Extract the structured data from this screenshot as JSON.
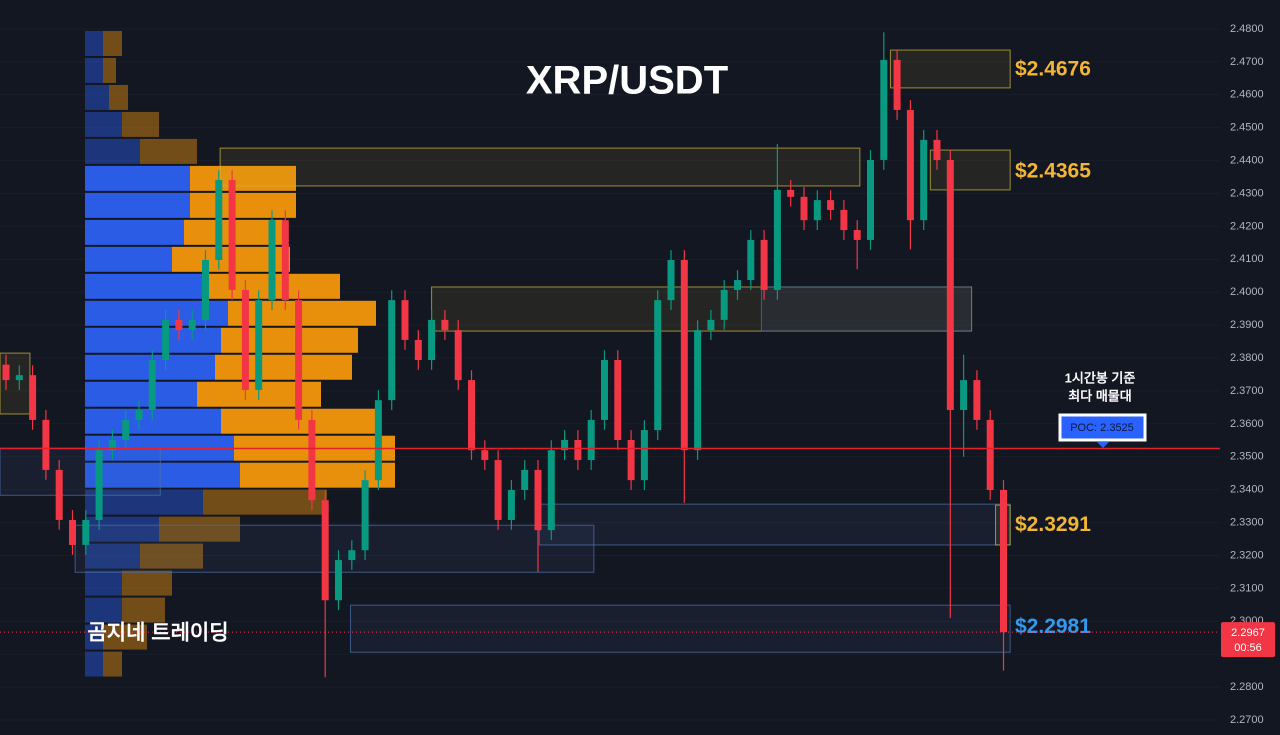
{
  "chart_data": {
    "type": "candlestick",
    "title": "XRP/USDT",
    "watermark": "곰지네 트레이딩",
    "annotation": [
      "1시간봉 기준",
      "최다 매물대"
    ],
    "poc": {
      "value": 2.3525,
      "label": "POC: 2.3525"
    },
    "current_price": 2.2967,
    "countdown": "00:56",
    "ylim": [
      2.27,
      2.48
    ],
    "yticks": [
      {
        "value": 2.48,
        "label": "2.4800"
      },
      {
        "value": 2.47,
        "label": "2.4700"
      },
      {
        "value": 2.46,
        "label": "2.4600"
      },
      {
        "value": 2.45,
        "label": "2.4500"
      },
      {
        "value": 2.44,
        "label": "2.4400"
      },
      {
        "value": 2.43,
        "label": "2.4300"
      },
      {
        "value": 2.42,
        "label": "2.4200"
      },
      {
        "value": 2.41,
        "label": "2.4100"
      },
      {
        "value": 2.4,
        "label": "2.4000"
      },
      {
        "value": 2.39,
        "label": "2.3900"
      },
      {
        "value": 2.38,
        "label": "2.3800"
      },
      {
        "value": 2.37,
        "label": "2.3700"
      },
      {
        "value": 2.36,
        "label": "2.3600"
      },
      {
        "value": 2.35,
        "label": "2.3500"
      },
      {
        "value": 2.34,
        "label": "2.3400"
      },
      {
        "value": 2.33,
        "label": "2.3300"
      },
      {
        "value": 2.32,
        "label": "2.3200"
      },
      {
        "value": 2.31,
        "label": "2.3100"
      },
      {
        "value": 2.3,
        "label": "2.3000"
      },
      {
        "value": 2.29,
        "label": "2.2900"
      },
      {
        "value": 2.28,
        "label": "2.2800"
      },
      {
        "value": 2.27,
        "label": "2.2700"
      }
    ],
    "up_color": "#089981",
    "down_color": "#f23645",
    "open": [
      2.378,
      2.3733,
      2.3748,
      2.3612,
      2.346,
      2.3308,
      2.3232,
      2.3308,
      2.352,
      2.3551,
      2.3612,
      2.3642,
      2.3794,
      2.3916,
      2.3885,
      2.3916,
      2.4098,
      2.4341,
      2.4007,
      2.3703,
      2.3976,
      2.4219,
      2.3976,
      2.3612,
      2.3368,
      2.3064,
      2.3186,
      2.3216,
      2.3429,
      2.3672,
      2.3976,
      2.3855,
      2.3794,
      2.3916,
      2.3885,
      2.3733,
      2.352,
      2.349,
      2.3308,
      2.3399,
      2.346,
      2.3277,
      2.352,
      2.3551,
      2.349,
      2.3612,
      2.3794,
      2.3551,
      2.3429,
      2.3581,
      2.3976,
      2.4098,
      2.352,
      2.3885,
      2.3916,
      2.4007,
      2.4037,
      2.4159,
      2.4007,
      2.4311,
      2.429,
      2.4219,
      2.428,
      2.425,
      2.4189,
      2.4159,
      2.4402,
      2.4706,
      2.4554,
      2.4219,
      2.4463,
      2.4402,
      2.3642,
      2.3733,
      2.3612,
      2.3399
    ],
    "high": [
      2.381,
      2.3778,
      2.3778,
      2.3642,
      2.349,
      2.3338,
      2.3338,
      2.355,
      2.3581,
      2.3642,
      2.3672,
      2.3824,
      2.3946,
      2.3946,
      2.3946,
      2.4128,
      2.4371,
      2.4371,
      2.4037,
      2.4006,
      2.4249,
      2.4249,
      2.4006,
      2.3642,
      2.3398,
      2.3216,
      2.3246,
      2.3459,
      2.3702,
      2.4006,
      2.4006,
      2.3885,
      2.3946,
      2.3946,
      2.3915,
      2.3763,
      2.355,
      2.352,
      2.3429,
      2.349,
      2.349,
      2.355,
      2.3581,
      2.3581,
      2.3642,
      2.3824,
      2.3824,
      2.3581,
      2.3611,
      2.4006,
      2.4128,
      2.4128,
      2.3915,
      2.3946,
      2.4037,
      2.4067,
      2.4189,
      2.4189,
      2.445,
      2.4341,
      2.432,
      2.431,
      2.431,
      2.428,
      2.4219,
      2.4432,
      2.479,
      2.4736,
      2.4584,
      2.4493,
      2.4493,
      2.4432,
      2.381,
      2.3763,
      2.3642,
      2.3429
    ],
    "low": [
      2.3703,
      2.3703,
      2.3582,
      2.343,
      2.3278,
      2.3202,
      2.3202,
      2.3278,
      2.349,
      2.3521,
      2.3582,
      2.3612,
      2.3764,
      2.3855,
      2.3855,
      2.3886,
      2.4068,
      2.3977,
      2.3673,
      2.3673,
      2.3946,
      2.3946,
      2.3582,
      2.3338,
      2.283,
      2.3034,
      2.3156,
      2.3186,
      2.3399,
      2.3642,
      2.3825,
      2.3764,
      2.3764,
      2.3855,
      2.3703,
      2.349,
      2.346,
      2.3278,
      2.3278,
      2.3369,
      2.315,
      2.3247,
      2.349,
      2.346,
      2.346,
      2.3582,
      2.3521,
      2.3399,
      2.3399,
      2.3551,
      2.3946,
      2.336,
      2.349,
      2.3855,
      2.3886,
      2.3977,
      2.4007,
      2.3977,
      2.3977,
      2.426,
      2.4189,
      2.4189,
      2.422,
      2.4159,
      2.407,
      2.4129,
      2.4372,
      2.4524,
      2.413,
      2.4189,
      2.4372,
      2.301,
      2.35,
      2.3582,
      2.3369,
      2.285
    ],
    "close": [
      2.3733,
      2.3748,
      2.3612,
      2.346,
      2.3308,
      2.3232,
      2.3308,
      2.352,
      2.3551,
      2.3612,
      2.3642,
      2.3794,
      2.3916,
      2.3885,
      2.3916,
      2.4098,
      2.4341,
      2.4007,
      2.3703,
      2.3976,
      2.4219,
      2.3976,
      2.3612,
      2.3368,
      2.3064,
      2.3186,
      2.3216,
      2.3429,
      2.3672,
      2.3976,
      2.3855,
      2.3794,
      2.3916,
      2.3885,
      2.3733,
      2.352,
      2.349,
      2.3308,
      2.3399,
      2.346,
      2.3277,
      2.352,
      2.3551,
      2.349,
      2.3612,
      2.3794,
      2.3551,
      2.3429,
      2.3581,
      2.3976,
      2.4098,
      2.352,
      2.3885,
      2.3916,
      2.4007,
      2.4037,
      2.4159,
      2.4007,
      2.4311,
      2.429,
      2.4219,
      2.428,
      2.425,
      2.4189,
      2.4159,
      2.4402,
      2.4706,
      2.4554,
      2.4219,
      2.4463,
      2.4402,
      2.3642,
      2.3733,
      2.3612,
      2.3399,
      2.2967
    ],
    "profile": {
      "bins": [
        2.4797,
        2.4715,
        2.4633,
        2.4551,
        2.4469,
        2.4387,
        2.4305,
        2.4223,
        2.4141,
        2.4059,
        2.3977,
        2.3895,
        2.3813,
        2.3731,
        2.3649,
        2.3567,
        2.3485,
        2.3403,
        2.3321,
        2.3239,
        2.3157,
        2.3075,
        2.2993,
        2.2911,
        2.2829
      ],
      "buy": [
        18,
        18,
        24,
        37,
        55,
        105,
        105,
        99,
        87,
        124,
        143,
        136,
        130,
        112,
        136,
        149,
        155,
        118,
        74,
        55,
        37,
        37,
        18,
        18
      ],
      "sell": [
        19,
        13,
        19,
        37,
        57,
        106,
        106,
        99,
        118,
        131,
        148,
        137,
        137,
        124,
        155,
        161,
        155,
        124,
        81,
        63,
        50,
        43,
        44,
        19
      ],
      "value_area": [
        2.3403,
        2.4387
      ],
      "buy_color": "#2a5ce6",
      "sell_color": "#e8900c"
    },
    "zones": [
      {
        "from": 16.1,
        "to": 64.2,
        "price_low": 2.4323,
        "price_high": 2.4438,
        "color": "#c9b43a"
      },
      {
        "from": 66.5,
        "to": 75.5,
        "price_low": 2.4621,
        "price_high": 2.4736,
        "color": "#c9b43a"
      },
      {
        "from": 69.5,
        "to": 75.5,
        "price_low": 2.4311,
        "price_high": 2.4432,
        "color": "#c9b43a"
      },
      {
        "from": 32,
        "to": 72.6,
        "price_low": 2.3882,
        "price_high": 2.4016,
        "color": "#c9b43a"
      },
      {
        "from": 56.8,
        "to": 72.6,
        "price_low": 2.3882,
        "price_high": 2.4016,
        "color": "#4a6fa8"
      },
      {
        "from": -0.45,
        "to": 1.8,
        "price_low": 2.363,
        "price_high": 2.3815,
        "color": "#c9b43a"
      },
      {
        "from": -0.45,
        "to": 11.6,
        "price_low": 2.3383,
        "price_high": 2.3526,
        "color": "#4a6fa8"
      },
      {
        "from": 40.1,
        "to": 75.5,
        "price_low": 2.3232,
        "price_high": 2.3356,
        "color": "#4a6fa8"
      },
      {
        "from": 74.4,
        "to": 75.5,
        "price_low": 2.3232,
        "price_high": 2.3353,
        "color": "#c9b43a"
      },
      {
        "from": 5.2,
        "to": 44.2,
        "price_low": 2.3149,
        "price_high": 2.3292,
        "color": "#4a6fa8"
      },
      {
        "from": 25.9,
        "to": 75.5,
        "price_low": 2.2906,
        "price_high": 2.3049,
        "color": "#4a6fa8"
      }
    ],
    "levels": [
      {
        "value": 2.4676,
        "label": "$2.4676",
        "color": "#f2b632"
      },
      {
        "value": 2.4365,
        "label": "$2.4365",
        "color": "#f2b632"
      },
      {
        "value": 2.3291,
        "label": "$2.3291",
        "color": "#f2b632"
      },
      {
        "value": 2.2981,
        "label": "$2.2981",
        "color": "#2f9bf0"
      }
    ]
  }
}
